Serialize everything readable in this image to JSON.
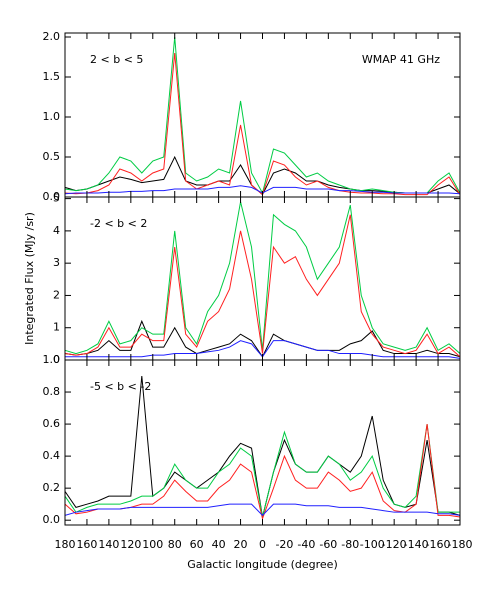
{
  "chart_data": [
    {
      "type": "line",
      "annotation": "2 < b < 5",
      "title": "WMAP 41 GHz",
      "x": [
        180,
        170,
        160,
        150,
        140,
        130,
        120,
        110,
        100,
        90,
        80,
        70,
        60,
        50,
        40,
        30,
        20,
        10,
        0,
        -10,
        -20,
        -30,
        -40,
        -50,
        -60,
        -70,
        -80,
        -90,
        -100,
        -110,
        -120,
        -130,
        -140,
        -150,
        -160,
        -170,
        -180
      ],
      "xlim": [
        180,
        -180
      ],
      "ylim": [
        0,
        2.05
      ],
      "yticks": [
        {
          "value": 0,
          "label": "0.0"
        },
        0.5,
        {
          "value": 1,
          "label": "1.0"
        },
        1.5,
        {
          "value": 2,
          "label": "2.0"
        }
      ],
      "series": [
        {
          "color": "#000000",
          "values": [
            0.12,
            0.08,
            0.1,
            0.15,
            0.2,
            0.25,
            0.22,
            0.18,
            0.2,
            0.22,
            0.5,
            0.2,
            0.15,
            0.15,
            0.2,
            0.2,
            0.4,
            0.15,
            0.03,
            0.3,
            0.35,
            0.3,
            0.2,
            0.2,
            0.15,
            0.12,
            0.1,
            0.08,
            0.08,
            0.07,
            0.06,
            0.05,
            0.05,
            0.05,
            0.1,
            0.15,
            0.04
          ]
        },
        {
          "color": "#00cc44",
          "values": [
            0.1,
            0.08,
            0.1,
            0.15,
            0.3,
            0.5,
            0.45,
            0.3,
            0.45,
            0.5,
            2.0,
            0.3,
            0.2,
            0.25,
            0.35,
            0.3,
            1.2,
            0.3,
            0.05,
            0.6,
            0.55,
            0.4,
            0.25,
            0.3,
            0.2,
            0.15,
            0.1,
            0.08,
            0.1,
            0.08,
            0.06,
            0.05,
            0.05,
            0.05,
            0.2,
            0.3,
            0.05
          ]
        },
        {
          "color": "#ff2020",
          "values": [
            0.05,
            0.04,
            0.05,
            0.08,
            0.15,
            0.35,
            0.3,
            0.2,
            0.3,
            0.35,
            1.8,
            0.2,
            0.1,
            0.15,
            0.2,
            0.15,
            0.9,
            0.15,
            0.03,
            0.45,
            0.4,
            0.25,
            0.15,
            0.2,
            0.12,
            0.08,
            0.06,
            0.05,
            0.05,
            0.04,
            0.04,
            0.03,
            0.03,
            0.03,
            0.15,
            0.25,
            0.03
          ]
        },
        {
          "color": "#2020ff",
          "values": [
            0.04,
            0.05,
            0.05,
            0.05,
            0.06,
            0.06,
            0.07,
            0.07,
            0.08,
            0.08,
            0.1,
            0.1,
            0.1,
            0.1,
            0.12,
            0.12,
            0.14,
            0.12,
            0.05,
            0.12,
            0.12,
            0.12,
            0.1,
            0.1,
            0.1,
            0.08,
            0.08,
            0.07,
            0.06,
            0.06,
            0.05,
            0.05,
            0.05,
            0.05,
            0.05,
            0.05,
            0.04
          ]
        }
      ]
    },
    {
      "type": "line",
      "annotation": "-2 < b < 2",
      "ylabel": "Integrated Flux (MJy /sr)",
      "x": [
        180,
        170,
        160,
        150,
        140,
        130,
        120,
        110,
        100,
        90,
        80,
        70,
        60,
        50,
        40,
        30,
        20,
        10,
        0,
        -10,
        -20,
        -30,
        -40,
        -50,
        -60,
        -70,
        -80,
        -90,
        -100,
        -110,
        -120,
        -130,
        -140,
        -150,
        -160,
        -170,
        -180
      ],
      "xlim": [
        180,
        -180
      ],
      "ylim": [
        0,
        5.05
      ],
      "yticks": [
        0,
        1,
        2,
        3,
        4,
        5
      ],
      "series": [
        {
          "color": "#000000",
          "values": [
            0.2,
            0.15,
            0.2,
            0.3,
            0.6,
            0.3,
            0.3,
            1.2,
            0.4,
            0.4,
            1.0,
            0.4,
            0.2,
            0.3,
            0.4,
            0.5,
            0.8,
            0.6,
            0.1,
            0.8,
            0.6,
            0.5,
            0.4,
            0.3,
            0.3,
            0.3,
            0.5,
            0.6,
            0.9,
            0.3,
            0.2,
            0.2,
            0.2,
            0.3,
            0.2,
            0.2,
            0.1
          ]
        },
        {
          "color": "#00cc44",
          "values": [
            0.3,
            0.2,
            0.3,
            0.5,
            1.2,
            0.5,
            0.6,
            1.0,
            0.8,
            0.8,
            4.0,
            1.0,
            0.5,
            1.5,
            2.0,
            3.0,
            4.9,
            3.5,
            0.3,
            4.5,
            4.2,
            4.0,
            3.5,
            2.5,
            3.0,
            3.5,
            4.8,
            2.0,
            1.0,
            0.5,
            0.4,
            0.3,
            0.4,
            1.0,
            0.3,
            0.5,
            0.2
          ]
        },
        {
          "color": "#ff2020",
          "values": [
            0.2,
            0.15,
            0.2,
            0.4,
            1.0,
            0.4,
            0.4,
            0.8,
            0.6,
            0.6,
            3.5,
            0.8,
            0.4,
            1.2,
            1.5,
            2.2,
            4.0,
            2.5,
            0.2,
            3.5,
            3.0,
            3.2,
            2.5,
            2.0,
            2.5,
            3.0,
            4.5,
            1.5,
            0.8,
            0.4,
            0.3,
            0.2,
            0.3,
            0.8,
            0.2,
            0.4,
            0.1
          ]
        },
        {
          "color": "#2020ff",
          "values": [
            0.1,
            0.1,
            0.1,
            0.1,
            0.1,
            0.1,
            0.1,
            0.1,
            0.15,
            0.15,
            0.2,
            0.2,
            0.2,
            0.25,
            0.3,
            0.4,
            0.6,
            0.5,
            0.1,
            0.6,
            0.6,
            0.5,
            0.4,
            0.3,
            0.3,
            0.2,
            0.2,
            0.2,
            0.15,
            0.1,
            0.1,
            0.1,
            0.1,
            0.1,
            0.1,
            0.1,
            0.05
          ]
        }
      ]
    },
    {
      "type": "line",
      "annotation": "-5 < b < -2",
      "xlabel": "Galactic longitude (degree)",
      "x": [
        180,
        170,
        160,
        150,
        140,
        130,
        120,
        110,
        100,
        90,
        80,
        70,
        60,
        50,
        40,
        30,
        20,
        10,
        0,
        -10,
        -20,
        -30,
        -40,
        -50,
        -60,
        -70,
        -80,
        -90,
        -100,
        -110,
        -120,
        -130,
        -140,
        -150,
        -160,
        -170,
        -180
      ],
      "xlim": [
        180,
        -180
      ],
      "ylim": [
        -0.03,
        1.0
      ],
      "xticks": [
        180,
        160,
        140,
        120,
        100,
        80,
        60,
        40,
        20,
        0,
        -20,
        -40,
        -60,
        -80,
        -100,
        -120,
        -140,
        -160,
        -180
      ],
      "yticks": [
        {
          "value": 0,
          "label": "0.0"
        },
        0.2,
        0.4,
        0.6,
        0.8,
        {
          "value": 1,
          "label": "1.0"
        }
      ],
      "series": [
        {
          "color": "#000000",
          "values": [
            0.18,
            0.08,
            0.1,
            0.12,
            0.15,
            0.15,
            0.15,
            0.9,
            0.15,
            0.2,
            0.3,
            0.25,
            0.2,
            0.25,
            0.3,
            0.4,
            0.48,
            0.45,
            0.02,
            0.3,
            0.5,
            0.35,
            0.3,
            0.3,
            0.4,
            0.35,
            0.3,
            0.4,
            0.65,
            0.25,
            0.1,
            0.08,
            0.1,
            0.5,
            0.05,
            0.05,
            0.03
          ]
        },
        {
          "color": "#00cc44",
          "values": [
            0.15,
            0.05,
            0.08,
            0.1,
            0.1,
            0.1,
            0.12,
            0.15,
            0.15,
            0.2,
            0.35,
            0.25,
            0.2,
            0.2,
            0.3,
            0.35,
            0.45,
            0.4,
            0.02,
            0.3,
            0.55,
            0.35,
            0.3,
            0.3,
            0.4,
            0.35,
            0.25,
            0.3,
            0.4,
            0.2,
            0.1,
            0.08,
            0.15,
            0.6,
            0.05,
            0.05,
            0.05
          ]
        },
        {
          "color": "#ff2020",
          "values": [
            0.1,
            0.04,
            0.05,
            0.07,
            0.07,
            0.07,
            0.08,
            0.1,
            0.1,
            0.15,
            0.25,
            0.18,
            0.12,
            0.12,
            0.2,
            0.25,
            0.35,
            0.3,
            0.01,
            0.2,
            0.4,
            0.25,
            0.2,
            0.2,
            0.3,
            0.25,
            0.18,
            0.2,
            0.3,
            0.12,
            0.06,
            0.05,
            0.1,
            0.6,
            0.03,
            0.03,
            0.02
          ]
        },
        {
          "color": "#2020ff",
          "values": [
            0.03,
            0.05,
            0.06,
            0.07,
            0.07,
            0.07,
            0.08,
            0.08,
            0.08,
            0.08,
            0.08,
            0.08,
            0.08,
            0.08,
            0.09,
            0.1,
            0.1,
            0.1,
            0.03,
            0.1,
            0.1,
            0.1,
            0.09,
            0.09,
            0.09,
            0.08,
            0.08,
            0.08,
            0.07,
            0.06,
            0.05,
            0.05,
            0.05,
            0.05,
            0.04,
            0.04,
            0.03
          ]
        }
      ]
    }
  ]
}
